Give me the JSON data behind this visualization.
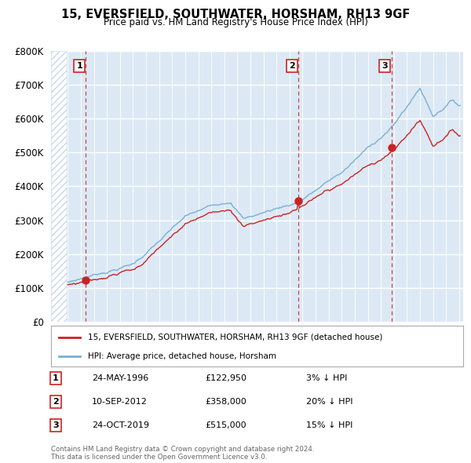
{
  "title": "15, EVERSFIELD, SOUTHWATER, HORSHAM, RH13 9GF",
  "subtitle": "Price paid vs. HM Land Registry's House Price Index (HPI)",
  "background_color": "#dce9f5",
  "ylim": [
    0,
    800000
  ],
  "yticks": [
    0,
    100000,
    200000,
    300000,
    400000,
    500000,
    600000,
    700000,
    800000
  ],
  "xlim_start": 1993.7,
  "xlim_end": 2025.3,
  "hatch_end": 1994.92,
  "sale_dates": [
    1996.39,
    2012.69,
    2019.81
  ],
  "sale_prices": [
    122950,
    358000,
    515000
  ],
  "sale_labels": [
    "1",
    "2",
    "3"
  ],
  "legend_line1": "15, EVERSFIELD, SOUTHWATER, HORSHAM, RH13 9GF (detached house)",
  "legend_line2": "HPI: Average price, detached house, Horsham",
  "table_rows": [
    [
      "1",
      "24-MAY-1996",
      "£122,950",
      "3% ↓ HPI"
    ],
    [
      "2",
      "10-SEP-2012",
      "£358,000",
      "20% ↓ HPI"
    ],
    [
      "3",
      "24-OCT-2019",
      "£515,000",
      "15% ↓ HPI"
    ]
  ],
  "footnote1": "Contains HM Land Registry data © Crown copyright and database right 2024.",
  "footnote2": "This data is licensed under the Open Government Licence v3.0.",
  "hpi_color": "#7aaed4",
  "price_color": "#cc2222",
  "dashed_line_color": "#cc4444",
  "hatch_color": "#c8d8e8"
}
